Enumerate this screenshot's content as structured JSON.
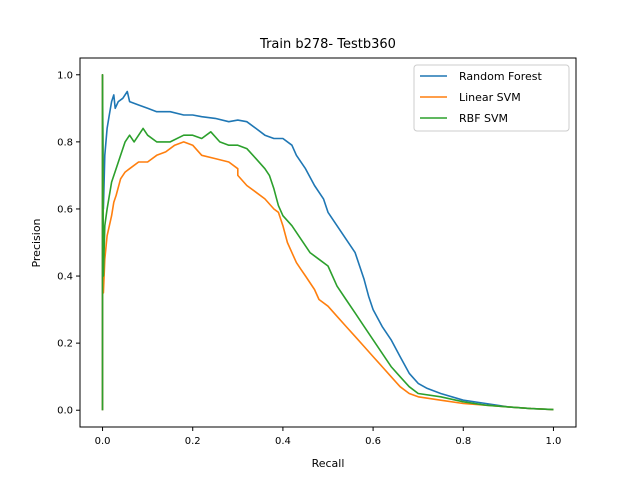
{
  "chart_data": {
    "type": "line",
    "title": "Train b278- Testb360",
    "xlabel": "Recall",
    "ylabel": "Precision",
    "xlim": [
      -0.05,
      1.05
    ],
    "ylim": [
      -0.05,
      1.05
    ],
    "xticks": [
      0.0,
      0.2,
      0.4,
      0.6,
      0.8,
      1.0
    ],
    "xtick_labels": [
      "0.0",
      "0.2",
      "0.4",
      "0.6",
      "0.8",
      "1.0"
    ],
    "yticks": [
      0.0,
      0.2,
      0.4,
      0.6,
      0.8,
      1.0
    ],
    "ytick_labels": [
      "0.0",
      "0.2",
      "0.4",
      "0.6",
      "0.8",
      "1.0"
    ],
    "grid": false,
    "legend_position": "top-right",
    "series": [
      {
        "name": "Random Forest",
        "color": "#1f77b4",
        "points": [
          [
            0.0,
            0.0
          ],
          [
            0.0,
            1.0
          ],
          [
            0.002,
            0.6
          ],
          [
            0.005,
            0.76
          ],
          [
            0.01,
            0.84
          ],
          [
            0.015,
            0.88
          ],
          [
            0.02,
            0.92
          ],
          [
            0.025,
            0.94
          ],
          [
            0.028,
            0.9
          ],
          [
            0.035,
            0.92
          ],
          [
            0.045,
            0.93
          ],
          [
            0.055,
            0.95
          ],
          [
            0.06,
            0.92
          ],
          [
            0.08,
            0.91
          ],
          [
            0.1,
            0.9
          ],
          [
            0.12,
            0.89
          ],
          [
            0.15,
            0.89
          ],
          [
            0.18,
            0.88
          ],
          [
            0.2,
            0.88
          ],
          [
            0.22,
            0.875
          ],
          [
            0.25,
            0.87
          ],
          [
            0.28,
            0.86
          ],
          [
            0.3,
            0.865
          ],
          [
            0.32,
            0.86
          ],
          [
            0.34,
            0.84
          ],
          [
            0.36,
            0.82
          ],
          [
            0.38,
            0.81
          ],
          [
            0.4,
            0.81
          ],
          [
            0.42,
            0.79
          ],
          [
            0.43,
            0.76
          ],
          [
            0.45,
            0.72
          ],
          [
            0.47,
            0.67
          ],
          [
            0.49,
            0.63
          ],
          [
            0.5,
            0.59
          ],
          [
            0.52,
            0.55
          ],
          [
            0.54,
            0.51
          ],
          [
            0.56,
            0.47
          ],
          [
            0.57,
            0.43
          ],
          [
            0.58,
            0.39
          ],
          [
            0.59,
            0.34
          ],
          [
            0.6,
            0.3
          ],
          [
            0.62,
            0.25
          ],
          [
            0.64,
            0.21
          ],
          [
            0.66,
            0.16
          ],
          [
            0.68,
            0.11
          ],
          [
            0.7,
            0.08
          ],
          [
            0.72,
            0.065
          ],
          [
            0.75,
            0.05
          ],
          [
            0.8,
            0.03
          ],
          [
            0.85,
            0.02
          ],
          [
            0.9,
            0.01
          ],
          [
            0.95,
            0.005
          ],
          [
            1.0,
            0.002
          ]
        ]
      },
      {
        "name": "Linear SVM",
        "color": "#ff7f0e",
        "points": [
          [
            0.0,
            0.0
          ],
          [
            0.0,
            1.0
          ],
          [
            0.002,
            0.35
          ],
          [
            0.005,
            0.45
          ],
          [
            0.01,
            0.52
          ],
          [
            0.02,
            0.58
          ],
          [
            0.025,
            0.62
          ],
          [
            0.03,
            0.64
          ],
          [
            0.04,
            0.69
          ],
          [
            0.05,
            0.71
          ],
          [
            0.06,
            0.72
          ],
          [
            0.08,
            0.74
          ],
          [
            0.1,
            0.74
          ],
          [
            0.12,
            0.76
          ],
          [
            0.14,
            0.77
          ],
          [
            0.16,
            0.79
          ],
          [
            0.18,
            0.8
          ],
          [
            0.2,
            0.79
          ],
          [
            0.22,
            0.76
          ],
          [
            0.25,
            0.75
          ],
          [
            0.28,
            0.74
          ],
          [
            0.3,
            0.72
          ],
          [
            0.3,
            0.7
          ],
          [
            0.32,
            0.67
          ],
          [
            0.34,
            0.65
          ],
          [
            0.36,
            0.63
          ],
          [
            0.38,
            0.6
          ],
          [
            0.39,
            0.59
          ],
          [
            0.4,
            0.55
          ],
          [
            0.41,
            0.5
          ],
          [
            0.42,
            0.47
          ],
          [
            0.43,
            0.44
          ],
          [
            0.44,
            0.42
          ],
          [
            0.45,
            0.4
          ],
          [
            0.47,
            0.36
          ],
          [
            0.48,
            0.33
          ],
          [
            0.5,
            0.31
          ],
          [
            0.52,
            0.28
          ],
          [
            0.54,
            0.25
          ],
          [
            0.56,
            0.22
          ],
          [
            0.58,
            0.19
          ],
          [
            0.6,
            0.16
          ],
          [
            0.62,
            0.13
          ],
          [
            0.64,
            0.1
          ],
          [
            0.66,
            0.07
          ],
          [
            0.68,
            0.05
          ],
          [
            0.7,
            0.04
          ],
          [
            0.75,
            0.03
          ],
          [
            0.8,
            0.02
          ],
          [
            0.85,
            0.015
          ],
          [
            0.9,
            0.01
          ],
          [
            0.95,
            0.005
          ],
          [
            1.0,
            0.002
          ]
        ]
      },
      {
        "name": "RBF SVM",
        "color": "#2ca02c",
        "points": [
          [
            0.0,
            0.0
          ],
          [
            0.0,
            1.0
          ],
          [
            0.002,
            0.4
          ],
          [
            0.005,
            0.55
          ],
          [
            0.01,
            0.6
          ],
          [
            0.02,
            0.68
          ],
          [
            0.03,
            0.72
          ],
          [
            0.04,
            0.76
          ],
          [
            0.05,
            0.8
          ],
          [
            0.06,
            0.82
          ],
          [
            0.07,
            0.8
          ],
          [
            0.08,
            0.82
          ],
          [
            0.09,
            0.84
          ],
          [
            0.1,
            0.82
          ],
          [
            0.12,
            0.8
          ],
          [
            0.15,
            0.8
          ],
          [
            0.18,
            0.82
          ],
          [
            0.2,
            0.82
          ],
          [
            0.22,
            0.81
          ],
          [
            0.24,
            0.83
          ],
          [
            0.26,
            0.8
          ],
          [
            0.28,
            0.79
          ],
          [
            0.3,
            0.79
          ],
          [
            0.32,
            0.78
          ],
          [
            0.34,
            0.75
          ],
          [
            0.36,
            0.72
          ],
          [
            0.37,
            0.7
          ],
          [
            0.38,
            0.66
          ],
          [
            0.39,
            0.61
          ],
          [
            0.4,
            0.58
          ],
          [
            0.42,
            0.55
          ],
          [
            0.44,
            0.51
          ],
          [
            0.46,
            0.47
          ],
          [
            0.48,
            0.45
          ],
          [
            0.5,
            0.43
          ],
          [
            0.52,
            0.37
          ],
          [
            0.54,
            0.33
          ],
          [
            0.56,
            0.29
          ],
          [
            0.58,
            0.25
          ],
          [
            0.6,
            0.21
          ],
          [
            0.62,
            0.17
          ],
          [
            0.64,
            0.13
          ],
          [
            0.66,
            0.1
          ],
          [
            0.68,
            0.07
          ],
          [
            0.7,
            0.05
          ],
          [
            0.75,
            0.04
          ],
          [
            0.8,
            0.025
          ],
          [
            0.85,
            0.015
          ],
          [
            0.9,
            0.01
          ],
          [
            0.95,
            0.005
          ],
          [
            1.0,
            0.002
          ]
        ]
      }
    ]
  }
}
